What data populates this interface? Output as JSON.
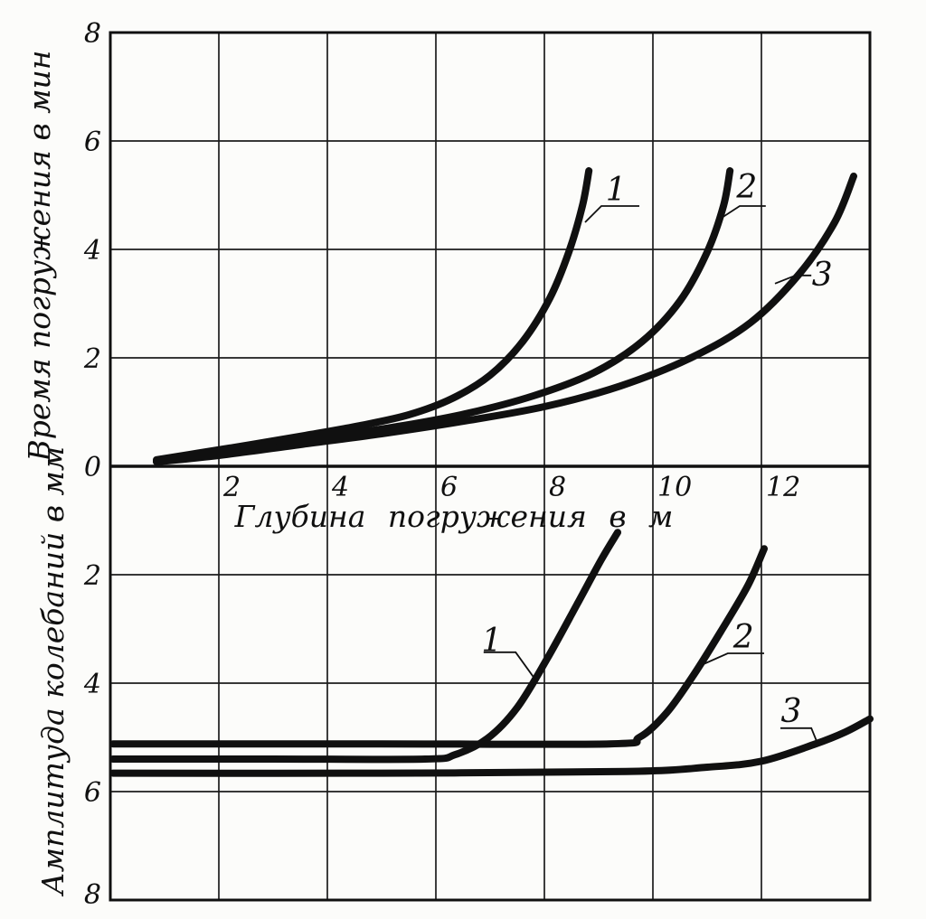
{
  "figure": {
    "colors": {
      "background": "#fcfcfa",
      "ink": "#101010",
      "grid": "#1c1c1c"
    },
    "origin_label": "0"
  },
  "chart_data": [
    {
      "type": "line",
      "title": "",
      "xlabel": "Глубина  погружения  в м",
      "ylabel": "Время погружения в мин",
      "xlim": [
        0,
        14
      ],
      "ylim": [
        0,
        8
      ],
      "x_ticks": [
        2,
        4,
        6,
        8,
        10,
        12
      ],
      "y_ticks": [
        2,
        4,
        6,
        8
      ],
      "y_direction": "up",
      "grid": true,
      "legend": "none",
      "series": [
        {
          "name": "1",
          "points": [
            [
              0.85,
              0.12
            ],
            [
              1.6,
              0.24
            ],
            [
              2.6,
              0.4
            ],
            [
              3.6,
              0.57
            ],
            [
              4.6,
              0.75
            ],
            [
              5.5,
              0.95
            ],
            [
              6.3,
              1.25
            ],
            [
              7.0,
              1.68
            ],
            [
              7.6,
              2.3
            ],
            [
              8.1,
              3.1
            ],
            [
              8.45,
              3.95
            ],
            [
              8.7,
              4.8
            ],
            [
              8.82,
              5.45
            ]
          ]
        },
        {
          "name": "2",
          "points": [
            [
              0.85,
              0.1
            ],
            [
              1.8,
              0.22
            ],
            [
              3.0,
              0.4
            ],
            [
              4.2,
              0.57
            ],
            [
              5.4,
              0.75
            ],
            [
              6.6,
              0.98
            ],
            [
              7.8,
              1.3
            ],
            [
              8.9,
              1.72
            ],
            [
              9.8,
              2.3
            ],
            [
              10.5,
              3.05
            ],
            [
              11.0,
              3.95
            ],
            [
              11.3,
              4.8
            ],
            [
              11.42,
              5.45
            ]
          ]
        },
        {
          "name": "3",
          "points": [
            [
              0.85,
              0.08
            ],
            [
              2.0,
              0.2
            ],
            [
              3.5,
              0.4
            ],
            [
              5.0,
              0.6
            ],
            [
              6.5,
              0.83
            ],
            [
              8.0,
              1.1
            ],
            [
              9.4,
              1.48
            ],
            [
              10.7,
              2.0
            ],
            [
              11.8,
              2.65
            ],
            [
              12.7,
              3.55
            ],
            [
              13.35,
              4.5
            ],
            [
              13.7,
              5.35
            ]
          ]
        }
      ],
      "annotations": [
        {
          "text": "1",
          "at": [
            9.32,
            5.1
          ],
          "leader": [
            [
              8.75,
              4.5
            ],
            [
              9.05,
              4.8
            ],
            [
              9.75,
              4.8
            ]
          ]
        },
        {
          "text": "2",
          "at": [
            11.73,
            5.15
          ],
          "leader": [
            [
              11.2,
              4.54
            ],
            [
              11.6,
              4.8
            ],
            [
              12.08,
              4.8
            ]
          ]
        },
        {
          "text": "3",
          "at": [
            13.12,
            3.53
          ],
          "leader": [
            [
              12.25,
              3.37
            ],
            [
              12.63,
              3.52
            ],
            [
              12.92,
              3.52
            ]
          ]
        }
      ]
    },
    {
      "type": "line",
      "title": "",
      "xlabel": "",
      "ylabel": "Амплитуда колебаний в мм",
      "xlim": [
        0,
        14
      ],
      "ylim": [
        0,
        8
      ],
      "x_ticks": [],
      "y_ticks": [
        2,
        4,
        6,
        8
      ],
      "y_direction": "down",
      "grid": true,
      "legend": "none",
      "series": [
        {
          "name": "1",
          "points": [
            [
              0.05,
              5.4
            ],
            [
              3.0,
              5.4
            ],
            [
              5.8,
              5.4
            ],
            [
              6.35,
              5.32
            ],
            [
              6.95,
              5.02
            ],
            [
              7.5,
              4.45
            ],
            [
              8.05,
              3.55
            ],
            [
              8.6,
              2.55
            ],
            [
              9.05,
              1.72
            ],
            [
              9.35,
              1.22
            ]
          ]
        },
        {
          "name": "2",
          "points": [
            [
              0.05,
              5.12
            ],
            [
              5.0,
              5.12
            ],
            [
              9.2,
              5.12
            ],
            [
              9.75,
              5.0
            ],
            [
              10.25,
              4.55
            ],
            [
              10.75,
              3.85
            ],
            [
              11.25,
              3.05
            ],
            [
              11.75,
              2.2
            ],
            [
              12.05,
              1.52
            ]
          ]
        },
        {
          "name": "3",
          "points": [
            [
              0.05,
              5.66
            ],
            [
              5.0,
              5.66
            ],
            [
              9.5,
              5.63
            ],
            [
              11.0,
              5.55
            ],
            [
              12.0,
              5.44
            ],
            [
              13.0,
              5.12
            ],
            [
              13.55,
              4.9
            ],
            [
              14.0,
              4.66
            ]
          ]
        }
      ],
      "annotations": [
        {
          "text": "1",
          "at": [
            7.03,
            3.22
          ],
          "leader": [
            [
              6.88,
              3.43
            ],
            [
              7.47,
              3.43
            ],
            [
              7.83,
              3.93
            ]
          ]
        },
        {
          "text": "2",
          "at": [
            11.67,
            3.15
          ],
          "leader": [
            [
              10.93,
              3.65
            ],
            [
              11.38,
              3.45
            ],
            [
              12.05,
              3.45
            ]
          ]
        },
        {
          "text": "3",
          "at": [
            12.55,
            4.52
          ],
          "leader": [
            [
              12.35,
              4.83
            ],
            [
              12.92,
              4.83
            ],
            [
              13.05,
              5.15
            ]
          ]
        }
      ]
    }
  ]
}
